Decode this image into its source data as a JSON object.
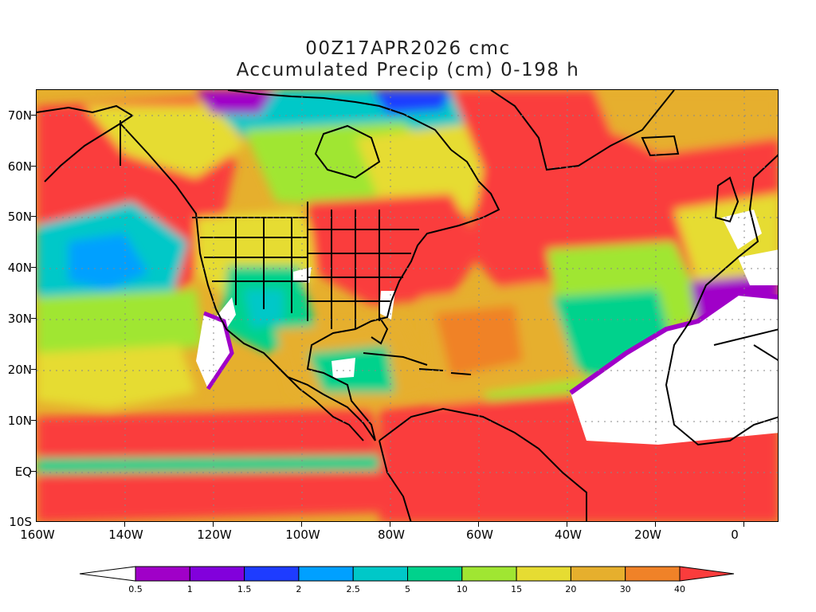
{
  "title_line1": "00Z17APR2026 cmc",
  "title_line2": "Accumulated Precip (cm) 0-198 h",
  "y_axis_labels": [
    "70N",
    "60N",
    "50N",
    "40N",
    "30N",
    "20N",
    "10N",
    "EQ",
    "10S"
  ],
  "x_axis_labels": [
    "160W",
    "140W",
    "120W",
    "100W",
    "80W",
    "60W",
    "40W",
    "20W",
    "0"
  ],
  "colorbar": {
    "labels": [
      "0.5",
      "1",
      "1.5",
      "2",
      "2.5",
      "5",
      "10",
      "15",
      "20",
      "30",
      "40"
    ],
    "colors": [
      "#ffffff",
      "#a000c8",
      "#8200dc",
      "#1e3cff",
      "#00a0ff",
      "#00c8c8",
      "#00d28c",
      "#a0e632",
      "#e6dc32",
      "#e6af2d",
      "#f08228",
      "#fa3c3c"
    ]
  },
  "palette": {
    "none": "#ffffff",
    "purple": "#a000c8",
    "blue": "#1e3cff",
    "lightblue": "#00a0ff",
    "cyan": "#00c8c8",
    "teal": "#00d28c",
    "green": "#a0e632",
    "yellow": "#e6dc32",
    "orange": "#e6af2d",
    "darkorange": "#f08228",
    "red": "#fa3c3c",
    "coast": "#000000"
  }
}
